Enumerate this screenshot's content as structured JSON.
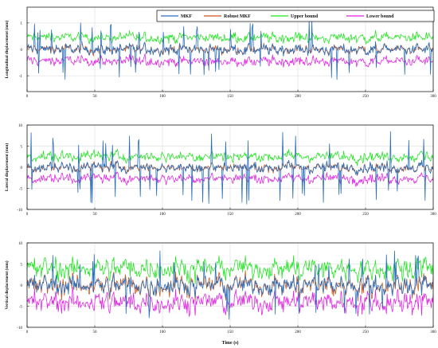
{
  "chart_data": [
    {
      "type": "line",
      "ylabel": "Longitudinal displacement (mm)",
      "xlabel": "",
      "xlim": [
        0,
        300
      ],
      "ylim": [
        -1.6,
        1.6
      ],
      "xticks": [
        0,
        50,
        100,
        150,
        200,
        250,
        300
      ],
      "xtick_labels": [
        "0",
        "50",
        "100",
        "150",
        "200",
        "250",
        "300"
      ],
      "yticks": [
        -1,
        0,
        1
      ],
      "ytick_labels": [
        "-1",
        "0",
        "1"
      ],
      "grid": true,
      "legend_position": "top-right",
      "series": [
        {
          "name": "MKF",
          "color": "#2a6ebd",
          "mean": 0.0,
          "noise": 0.15,
          "spike": 1.05,
          "spike_rate": 0.065
        },
        {
          "name": "Robust MKF",
          "color": "#c8561b",
          "mean": 0.0,
          "noise": 0.14
        },
        {
          "name": "Upper bound",
          "color": "#1fe31f",
          "mean": 0.45,
          "noise": 0.14
        },
        {
          "name": "Lower bound",
          "color": "#e21fe3",
          "mean": -0.45,
          "noise": 0.14
        }
      ]
    },
    {
      "type": "line",
      "ylabel": "Lateral displacement (mm)",
      "xlabel": "",
      "xlim": [
        0,
        300
      ],
      "ylim": [
        -10,
        10
      ],
      "xticks": [
        0,
        50,
        100,
        150,
        200,
        250,
        300
      ],
      "xtick_labels": [
        "0",
        "50",
        "100",
        "150",
        "200",
        "250",
        "300"
      ],
      "yticks": [
        -10,
        -5,
        0,
        5,
        10
      ],
      "ytick_labels": [
        "-10",
        "-5",
        "0",
        "5",
        "10"
      ],
      "grid": true,
      "series": [
        {
          "name": "MKF",
          "color": "#2a6ebd",
          "mean": 0.0,
          "noise": 0.9,
          "spike": 8.0,
          "spike_rate": 0.06
        },
        {
          "name": "Robust MKF",
          "color": "#c8561b",
          "mean": 0.0,
          "noise": 0.9
        },
        {
          "name": "Upper bound",
          "color": "#1fe31f",
          "mean": 2.6,
          "noise": 0.9
        },
        {
          "name": "Lower bound",
          "color": "#e21fe3",
          "mean": -2.6,
          "noise": 0.9
        }
      ]
    },
    {
      "type": "line",
      "ylabel": "Vertical displacement (mm)",
      "xlabel": "Time (s)",
      "xlim": [
        0,
        300
      ],
      "ylim": [
        -10,
        10
      ],
      "xticks": [
        0,
        50,
        100,
        150,
        200,
        250,
        300
      ],
      "xtick_labels": [
        "0",
        "50",
        "100",
        "150",
        "200",
        "250",
        "300"
      ],
      "yticks": [
        -10,
        -5,
        0,
        5,
        10
      ],
      "ytick_labels": [
        "-10",
        "-5",
        "0",
        "5",
        "10"
      ],
      "grid": true,
      "series": [
        {
          "name": "MKF",
          "color": "#2a6ebd",
          "mean": 0.0,
          "noise": 1.6,
          "spike": 7.5,
          "spike_rate": 0.05
        },
        {
          "name": "Robust MKF",
          "color": "#c8561b",
          "mean": 0.0,
          "noise": 1.9
        },
        {
          "name": "Upper bound",
          "color": "#1fe31f",
          "mean": 4.0,
          "noise": 1.9
        },
        {
          "name": "Lower bound",
          "color": "#e21fe3",
          "mean": -4.0,
          "noise": 1.9
        }
      ]
    }
  ],
  "legend": [
    {
      "label": "MKF",
      "color": "#2a6ebd"
    },
    {
      "label": "Robust MKF",
      "color": "#c8561b"
    },
    {
      "label": "Upper bound",
      "color": "#1fe31f"
    },
    {
      "label": "Lower bound",
      "color": "#e21fe3"
    }
  ]
}
